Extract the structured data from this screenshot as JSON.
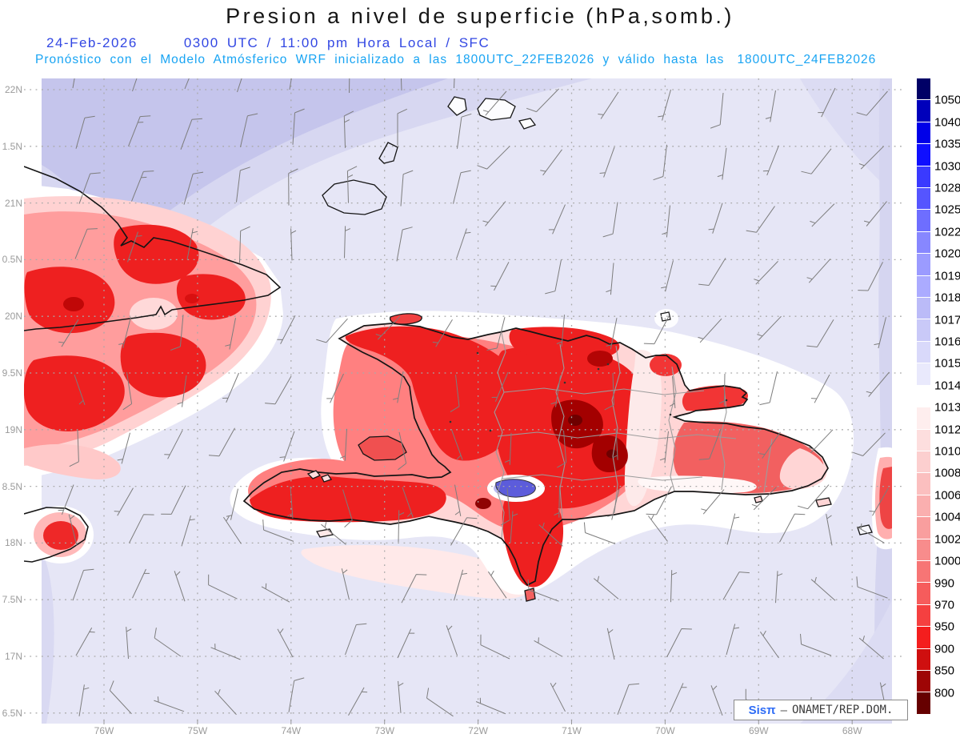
{
  "header": {
    "title": "Presion a nivel de superficie (hPa,somb.)",
    "date": "24-Feb-2026",
    "time": "0300 UTC / 11:00 pm Hora Local / SFC",
    "forecast_prefix": "Pronóstico con el Modelo Atmósferico WRF inicializado a las 1800UTC_22FEB2026 y válido hasta las",
    "forecast_valid": "1800UTC_24FEB2026"
  },
  "axes": {
    "lat_labels": [
      "22N",
      "1.5N",
      "21N",
      "0.5N",
      "20N",
      "9.5N",
      "19N",
      "8.5N",
      "18N",
      "7.5N",
      "17N",
      "6.5N"
    ],
    "lon_labels": [
      "76W",
      "75W",
      "74W",
      "73W",
      "72W",
      "71W",
      "70W",
      "69W",
      "68W"
    ]
  },
  "colorbar": {
    "unit": "hPa",
    "values": [
      "1050",
      "1040",
      "1035",
      "1030",
      "1028",
      "1025",
      "1022",
      "1020",
      "1019",
      "1018",
      "1017",
      "1016",
      "1015",
      "1014",
      "1013",
      "1012",
      "1010",
      "1008",
      "1006",
      "1004",
      "1002",
      "1000",
      "990",
      "970",
      "950",
      "900",
      "850",
      "800"
    ],
    "colors": [
      "#000066",
      "#0000bb",
      "#0000e8",
      "#0f0fff",
      "#3a3aff",
      "#5555ff",
      "#6e6eff",
      "#8787ff",
      "#9b9bff",
      "#ababff",
      "#bbbbf8",
      "#c9c9f8",
      "#d9d9fa",
      "#e9e9fc",
      "#ffffff",
      "#feeeee",
      "#fddede",
      "#fccfcf",
      "#fbbfbf",
      "#faafaf",
      "#f99e9e",
      "#f88c8c",
      "#f77575",
      "#f65c5c",
      "#f54040",
      "#f41e1e",
      "#cf0f0f",
      "#9e0505",
      "#660000"
    ]
  },
  "footer": {
    "brand": "Sisπ",
    "separator": "–",
    "org": "ONAMET/REP.DOM."
  },
  "wind_barbs": {
    "color": "#7d7d7d"
  },
  "map_colors": {
    "sea": "#e6e6f6",
    "sea_medium": "#d7d7f1",
    "sea_dark": "#c5c5ec",
    "grid": "#a9a9a9",
    "coast": "#151515",
    "province": "#9c9c9c",
    "lake": "#5c5cdb",
    "header_blue": "#3247e3",
    "header_cyan": "#18a4f3"
  }
}
